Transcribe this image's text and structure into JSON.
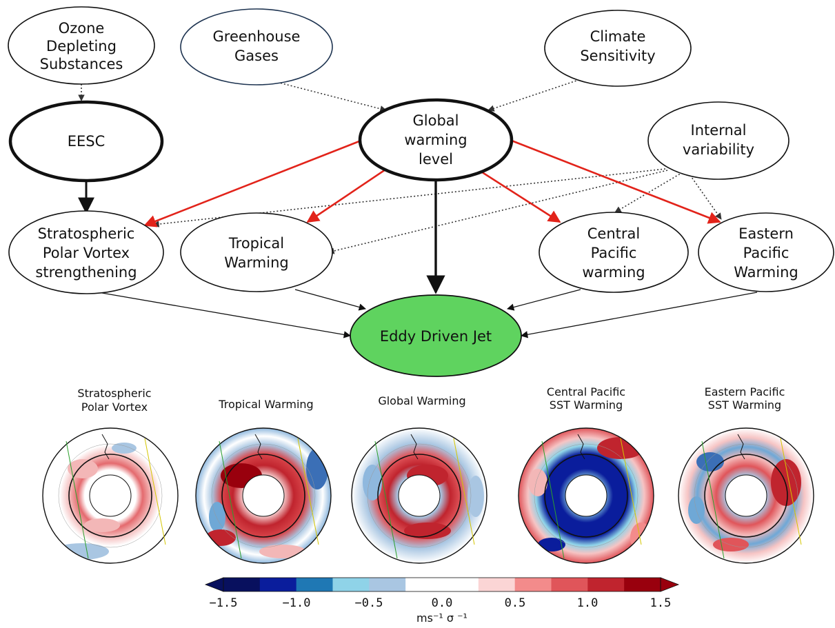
{
  "nodes": {
    "ods": [
      "Ozone",
      "Depleting",
      "Substances"
    ],
    "ghg": [
      "Greenhouse",
      "Gases"
    ],
    "cs": [
      "Climate",
      "Sensitivity"
    ],
    "eesc": [
      "EESC"
    ],
    "gwl": [
      "Global",
      "warming",
      "level"
    ],
    "iv": [
      "Internal",
      "variability"
    ],
    "spv": [
      "Stratospheric",
      "Polar Vortex",
      "strengthening"
    ],
    "tw": [
      "Tropical",
      "Warming"
    ],
    "cpw": [
      "Central",
      "Pacific",
      "warming"
    ],
    "epw": [
      "Eastern",
      "Pacific",
      "Warming"
    ],
    "edj": [
      "Eddy Driven Jet"
    ]
  },
  "colors": {
    "edj_fill": "#5fd35f",
    "red_arrow": "#e2231a",
    "colorbar": [
      "#08105e",
      "#0a1d9c",
      "#1f78b4",
      "#8fd3e8",
      "#a9c6e2",
      "#ffffff",
      "#ffffff",
      "#fbd5d5",
      "#f38b8b",
      "#e0555a",
      "#c0242e",
      "#99000d"
    ]
  },
  "maps": [
    {
      "title": [
        "Stratospheric",
        "Polar Vortex"
      ]
    },
    {
      "title": [
        "Tropical Warming"
      ]
    },
    {
      "title": [
        "Global Warming"
      ]
    },
    {
      "title": [
        "Central Pacific",
        "SST Warming"
      ]
    },
    {
      "title": [
        "Eastern Pacific",
        "SST Warming"
      ]
    }
  ],
  "colorbar": {
    "ticks": [
      "−1.5",
      "−1.0",
      "−0.5",
      "0.0",
      "0.5",
      "1.0",
      "1.5"
    ],
    "unit": "ms⁻¹ σ ⁻¹"
  }
}
